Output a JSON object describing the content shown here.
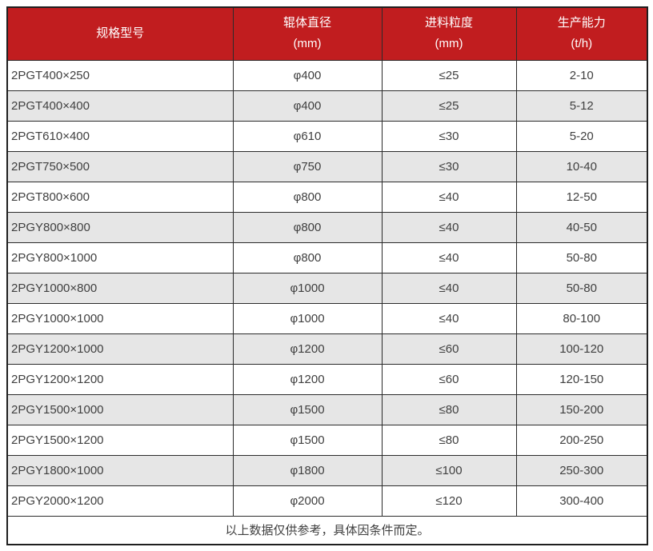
{
  "colors": {
    "header_bg": "#c11d1f",
    "header_text": "#ffffff",
    "row_alt_bg": "#e6e6e6",
    "body_text": "#404040",
    "border": "#2b2b2b"
  },
  "table": {
    "headers": [
      {
        "line1": "规格型号",
        "line2": ""
      },
      {
        "line1": "辊体直径",
        "line2": "(mm)"
      },
      {
        "line1": "进料粒度",
        "line2": "(mm)"
      },
      {
        "line1": "生产能力",
        "line2": "(t/h)"
      }
    ],
    "rows": [
      [
        "2PGT400×250",
        "φ400",
        "≤25",
        "2-10"
      ],
      [
        "2PGT400×400",
        "φ400",
        "≤25",
        "5-12"
      ],
      [
        "2PGT610×400",
        "φ610",
        "≤30",
        "5-20"
      ],
      [
        "2PGT750×500",
        "φ750",
        "≤30",
        "10-40"
      ],
      [
        "2PGT800×600",
        "φ800",
        "≤40",
        "12-50"
      ],
      [
        "2PGY800×800",
        "φ800",
        "≤40",
        "40-50"
      ],
      [
        "2PGY800×1000",
        "φ800",
        "≤40",
        "50-80"
      ],
      [
        "2PGY1000×800",
        "φ1000",
        "≤40",
        "50-80"
      ],
      [
        "2PGY1000×1000",
        "φ1000",
        "≤40",
        "80-100"
      ],
      [
        "2PGY1200×1000",
        "φ1200",
        "≤60",
        "100-120"
      ],
      [
        "2PGY1200×1200",
        "φ1200",
        "≤60",
        "120-150"
      ],
      [
        "2PGY1500×1000",
        "φ1500",
        "≤80",
        "150-200"
      ],
      [
        "2PGY1500×1200",
        "φ1500",
        "≤80",
        "200-250"
      ],
      [
        "2PGY1800×1000",
        "φ1800",
        "≤100",
        "250-300"
      ],
      [
        "2PGY2000×1200",
        "φ2000",
        "≤120",
        "300-400"
      ]
    ],
    "footer_note": "以上数据仅供参考，具体因条件而定。"
  }
}
